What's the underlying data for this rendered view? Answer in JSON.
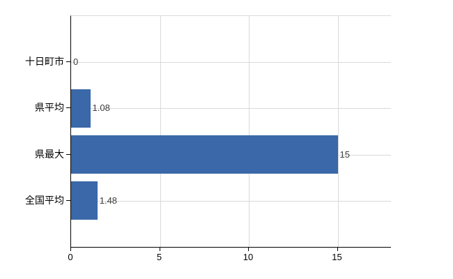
{
  "chart_data": {
    "type": "bar",
    "orientation": "horizontal",
    "title": "",
    "categories": [
      "十日町市",
      "県平均",
      "県最大",
      "全国平均"
    ],
    "values": [
      0,
      1.08,
      15,
      1.48
    ],
    "value_labels": [
      "0",
      "1.08",
      "15",
      "1.48"
    ],
    "x_tick_labels": [
      "0",
      "5",
      "10",
      "15"
    ],
    "x_tick_values": [
      0,
      5,
      10,
      15
    ],
    "xlim": [
      0,
      18
    ],
    "grid": true,
    "legend": "none",
    "colors": {
      "bar": "#3a68a8",
      "gridline": "#d9d9d9",
      "axis": "#000000",
      "category_label": "#000000",
      "value_label": "#3d3d3d",
      "tick_label": "#000000",
      "background": "#ffffff"
    }
  }
}
